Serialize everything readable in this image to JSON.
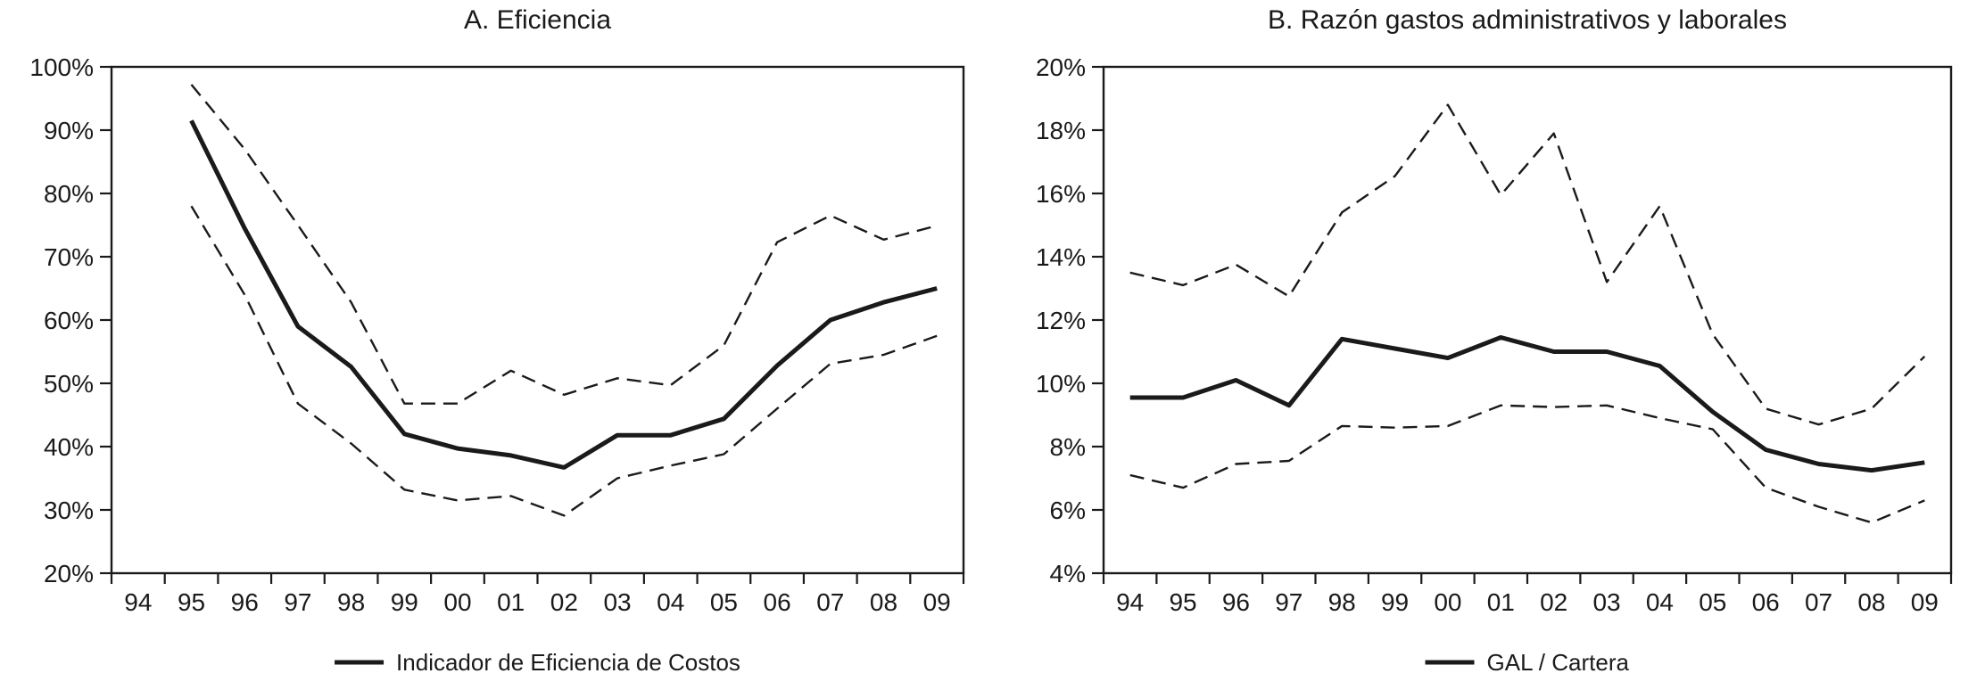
{
  "colors": {
    "ink": "#1a1a1a",
    "background": "#ffffff"
  },
  "chart_data": [
    {
      "type": "line",
      "title": "A. Eficiencia",
      "xlabel": "",
      "ylabel": "",
      "x_labels": [
        "94",
        "95",
        "96",
        "97",
        "98",
        "99",
        "00",
        "01",
        "02",
        "03",
        "04",
        "05",
        "06",
        "07",
        "08",
        "09"
      ],
      "ylim": [
        20,
        100
      ],
      "grid": false,
      "legend_position": "bottom-center",
      "legend_label": "Indicador de Eficiencia de Costos",
      "y_ticks": [
        {
          "value": 20,
          "label": "20%"
        },
        {
          "value": 30,
          "label": "30%"
        },
        {
          "value": 40,
          "label": "40%"
        },
        {
          "value": 50,
          "label": "50%"
        },
        {
          "value": 60,
          "label": "60%"
        },
        {
          "value": 70,
          "label": "70%"
        },
        {
          "value": 80,
          "label": "80%"
        },
        {
          "value": 90,
          "label": "90%"
        },
        {
          "value": 100,
          "label": "100%"
        }
      ],
      "series": [
        {
          "id": "eficiencia-costos",
          "label": "Indicador de Eficiencia de Costos",
          "style": "solid",
          "in_legend": true,
          "values": [
            null,
            91.5,
            74.5,
            59,
            52.6,
            42,
            39.7,
            38.6,
            36.7,
            41.8,
            41.8,
            44.4,
            52.8,
            60,
            62.8,
            65
          ]
        },
        {
          "id": "banda-superior",
          "label": null,
          "style": "dashed",
          "in_legend": false,
          "values": [
            null,
            97.2,
            87,
            75,
            62.8,
            46.8,
            46.8,
            52,
            48.2,
            50.8,
            49.7,
            56,
            72.3,
            76.5,
            72.7,
            74.9
          ]
        },
        {
          "id": "banda-inferior",
          "label": null,
          "style": "dashed",
          "in_legend": false,
          "values": [
            null,
            78,
            64,
            46.8,
            40.5,
            33.2,
            31.5,
            32.2,
            29.1,
            35,
            37,
            38.8,
            46,
            53.1,
            54.5,
            57.5
          ]
        }
      ]
    },
    {
      "type": "line",
      "title": "B. Razón gastos administrativos y laborales",
      "xlabel": "",
      "ylabel": "",
      "x_labels": [
        "94",
        "95",
        "96",
        "97",
        "98",
        "99",
        "00",
        "01",
        "02",
        "03",
        "04",
        "05",
        "06",
        "07",
        "08",
        "09"
      ],
      "ylim": [
        4,
        20
      ],
      "grid": false,
      "legend_position": "bottom-center",
      "legend_label": "GAL / Cartera",
      "y_ticks": [
        {
          "value": 4,
          "label": "4%"
        },
        {
          "value": 6,
          "label": "6%"
        },
        {
          "value": 8,
          "label": "8%"
        },
        {
          "value": 10,
          "label": "10%"
        },
        {
          "value": 12,
          "label": "12%"
        },
        {
          "value": 14,
          "label": "14%"
        },
        {
          "value": 16,
          "label": "16%"
        },
        {
          "value": 18,
          "label": "18%"
        },
        {
          "value": 20,
          "label": "20%"
        }
      ],
      "series": [
        {
          "id": "gal-cartera",
          "label": "GAL / Cartera",
          "style": "solid",
          "in_legend": true,
          "values": [
            9.55,
            9.55,
            10.1,
            9.3,
            11.4,
            11.1,
            10.8,
            11.45,
            11.0,
            11.0,
            10.55,
            9.1,
            7.9,
            7.45,
            7.25,
            7.5
          ]
        },
        {
          "id": "banda-superior",
          "label": null,
          "style": "dashed",
          "in_legend": false,
          "values": [
            13.5,
            13.1,
            13.75,
            12.75,
            15.4,
            16.55,
            18.8,
            15.95,
            17.9,
            13.2,
            15.6,
            11.55,
            9.2,
            8.7,
            9.2,
            10.85
          ]
        },
        {
          "id": "banda-inferior",
          "label": null,
          "style": "dashed",
          "in_legend": false,
          "values": [
            7.1,
            6.7,
            7.45,
            7.55,
            8.65,
            8.6,
            8.65,
            9.3,
            9.25,
            9.3,
            8.9,
            8.55,
            6.7,
            6.1,
            5.6,
            6.3
          ]
        }
      ]
    }
  ]
}
